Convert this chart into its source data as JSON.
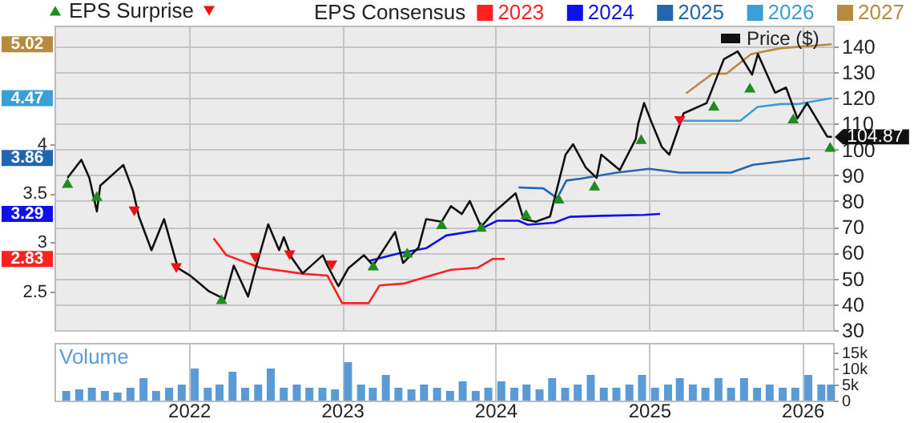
{
  "chart_data": [
    {
      "type": "line",
      "annotations": [
        "5.02",
        "4.47",
        "3.86",
        "3.29",
        "2.83"
      ],
      "legend_title": "EPS Consensus",
      "legend": "top",
      "grid": true,
      "tick_labels": "y",
      "xlim": [
        "2021-02-15",
        "2026-03-15"
      ],
      "xticks": [
        "2022",
        "2023",
        "2024",
        "2025",
        "2026"
      ],
      "ylim": [
        2.105,
        5.21
      ],
      "yticks": [
        2.5,
        3,
        3.5,
        4
      ],
      "y2lim": [
        30,
        148
      ],
      "y2ticks": [
        30,
        40,
        50,
        60,
        70,
        80,
        90,
        100,
        110,
        120,
        130,
        140
      ],
      "series": [
        {
          "name": "2023",
          "color": "#ff2020",
          "x": [
            "2022-03-01",
            "2022-03-31",
            "2022-06-20",
            "2022-09-29",
            "2022-11-27",
            "2023-01-01",
            "2023-03-05",
            "2023-03-31",
            "2023-05-29",
            "2023-07-31",
            "2023-09-17",
            "2023-11-19",
            "2023-12-25",
            "2024-01-23"
          ],
          "values": [
            3.04,
            2.87,
            2.74,
            2.68,
            2.66,
            2.38,
            2.38,
            2.56,
            2.58,
            2.66,
            2.72,
            2.74,
            2.83,
            2.83
          ]
        },
        {
          "name": "2024",
          "color": "#1010ee",
          "x": [
            "2023-03-05",
            "2023-05-18",
            "2023-07-20",
            "2023-09-06",
            "2023-11-19",
            "2024-01-05",
            "2024-02-25",
            "2024-03-18",
            "2024-05-20",
            "2024-06-26",
            "2024-09-08",
            "2024-12-20",
            "2025-01-27"
          ],
          "values": [
            2.81,
            2.89,
            2.94,
            3.07,
            3.12,
            3.22,
            3.22,
            3.18,
            3.2,
            3.26,
            3.27,
            3.28,
            3.29
          ]
        },
        {
          "name": "2025",
          "color": "#2266b0",
          "x": [
            "2024-02-25",
            "2024-04-24",
            "2024-05-27",
            "2024-06-18",
            "2024-07-22",
            "2024-10-15",
            "2025-01-01",
            "2025-03-15",
            "2025-07-15",
            "2025-09-05",
            "2026-01-19"
          ],
          "values": [
            3.56,
            3.55,
            3.45,
            3.63,
            3.65,
            3.71,
            3.75,
            3.71,
            3.71,
            3.79,
            3.86
          ]
        },
        {
          "name": "2026",
          "color": "#3a9fd4",
          "x": [
            "2025-03-22",
            "2025-08-06",
            "2025-09-16",
            "2025-11-11",
            "2025-12-21",
            "2026-01-30",
            "2026-03-12"
          ],
          "values": [
            4.24,
            4.24,
            4.38,
            4.41,
            4.41,
            4.44,
            4.47
          ]
        },
        {
          "name": "2027",
          "color": "#b88a3e",
          "x": [
            "2025-03-30",
            "2025-06-01",
            "2025-07-04",
            "2025-09-01",
            "2025-11-11",
            "2026-03-12"
          ],
          "values": [
            4.52,
            4.72,
            4.72,
            4.92,
            4.98,
            5.02
          ]
        },
        {
          "name": "Price ($)",
          "color": "#111111",
          "axis": "y2",
          "x": [
            "2021-03-18",
            "2021-04-20",
            "2021-05-09",
            "2021-05-27",
            "2021-06-04",
            "2021-07-29",
            "2021-08-21",
            "2021-09-04",
            "2021-10-04",
            "2021-11-03",
            "2021-12-06",
            "2022-01-05",
            "2022-02-18",
            "2022-03-27",
            "2022-04-18",
            "2022-05-22",
            "2022-06-09",
            "2022-07-09",
            "2022-08-04",
            "2022-08-15",
            "2022-09-03",
            "2022-09-29",
            "2022-11-16",
            "2022-11-27",
            "2022-12-23",
            "2023-01-16",
            "2023-02-22",
            "2023-03-16",
            "2023-05-07",
            "2023-05-26",
            "2023-07-02",
            "2023-07-20",
            "2023-08-26",
            "2023-09-17",
            "2023-10-13",
            "2023-11-01",
            "2023-11-28",
            "2023-12-24",
            "2024-02-18",
            "2024-03-08",
            "2024-04-06",
            "2024-05-10",
            "2024-06-16",
            "2024-07-04",
            "2024-08-03",
            "2024-08-29",
            "2024-09-09",
            "2024-10-23",
            "2024-11-30",
            "2024-12-06",
            "2024-12-20",
            "2025-01-08",
            "2025-01-31",
            "2025-02-18",
            "2025-03-24",
            "2025-05-18",
            "2025-06-28",
            "2025-07-31",
            "2025-09-03",
            "2025-09-17",
            "2025-10-28",
            "2025-11-23",
            "2025-12-20",
            "2026-01-12",
            "2026-03-01",
            "2026-03-12"
          ],
          "values": [
            89,
            96,
            89,
            76,
            86,
            94,
            84,
            74,
            61,
            73,
            54,
            51,
            45,
            42,
            55,
            43,
            54,
            71,
            61,
            66,
            58,
            52,
            59,
            55,
            47,
            54,
            59,
            55,
            68,
            56,
            62,
            73,
            72,
            78,
            75,
            80,
            70,
            75,
            83,
            73,
            72,
            74,
            98,
            102,
            93,
            89,
            98,
            92,
            104,
            110,
            118,
            110,
            101,
            98,
            114,
            118,
            135,
            138,
            129,
            137,
            122,
            124,
            112,
            118,
            105,
            104.87
          ],
          "value_labels": [
            null,
            null,
            null,
            null,
            null,
            null,
            null,
            null,
            null,
            null,
            null,
            null,
            null,
            null,
            null,
            null,
            null,
            null,
            null,
            null,
            null,
            null,
            null,
            null,
            null,
            null,
            null,
            null,
            null,
            null,
            null,
            null,
            null,
            null,
            null,
            null,
            null,
            null,
            null,
            null,
            null,
            null,
            null,
            null,
            null,
            null,
            null,
            null,
            null,
            null,
            null,
            null,
            null,
            null,
            null,
            null,
            null,
            null,
            null,
            null,
            null,
            null,
            null,
            null,
            null,
            "104.87"
          ]
        },
        {
          "type": "scatter",
          "name": "EPS Surprise",
          "marker": "triangle",
          "color": "#1e8c1e",
          "axis": "y2",
          "x": [
            "2021-03-18",
            "2021-05-27",
            "2022-03-20",
            "2023-03-16",
            "2023-06-05",
            "2023-08-26",
            "2023-11-28",
            "2024-03-14",
            "2024-05-31",
            "2024-08-24",
            "2024-12-13",
            "2025-06-04",
            "2025-08-29",
            "2025-12-10",
            "2026-03-08"
          ],
          "values": [
            87,
            82,
            42,
            55,
            60,
            71,
            70,
            75,
            81,
            86,
            104,
            117,
            124,
            112,
            101
          ]
        },
        {
          "type": "scatter",
          "marker": "triangle-down",
          "color": "#ee1111",
          "axis": "y2",
          "x": [
            "2021-08-24",
            "2021-12-02",
            "2022-06-08",
            "2022-08-29",
            "2022-12-07",
            "2025-03-15"
          ],
          "values": [
            76,
            54,
            58,
            59,
            55,
            111
          ]
        }
      ]
    },
    {
      "type": "bar",
      "annotations": [
        "Volume"
      ],
      "grid": "x",
      "xlim": [
        "2021-02-15",
        "2026-03-15"
      ],
      "xticks": [
        "2022",
        "2023",
        "2024",
        "2025",
        "2026"
      ],
      "y2lim": [
        0,
        18000
      ],
      "y2ticks": [
        0,
        {
          "value": 5000,
          "label": "5k"
        },
        {
          "value": 10000,
          "label": "10k"
        },
        {
          "value": 15000,
          "label": "15k"
        }
      ],
      "x": [
        "2021-03-15",
        "2021-04-15",
        "2021-05-15",
        "2021-06-15",
        "2021-07-15",
        "2021-08-15",
        "2021-09-15",
        "2021-10-15",
        "2021-11-15",
        "2021-12-15",
        "2022-01-15",
        "2022-02-15",
        "2022-03-15",
        "2022-04-15",
        "2022-05-15",
        "2022-06-15",
        "2022-07-15",
        "2022-08-15",
        "2022-09-15",
        "2022-10-15",
        "2022-11-15",
        "2022-12-15",
        "2023-01-15",
        "2023-02-15",
        "2023-03-15",
        "2023-04-15",
        "2023-05-15",
        "2023-06-15",
        "2023-07-15",
        "2023-08-15",
        "2023-09-15",
        "2023-10-15",
        "2023-11-15",
        "2023-12-15",
        "2024-01-15",
        "2024-02-15",
        "2024-03-15",
        "2024-04-15",
        "2024-05-15",
        "2024-06-15",
        "2024-07-15",
        "2024-08-15",
        "2024-09-15",
        "2024-10-15",
        "2024-11-15",
        "2024-12-15",
        "2025-01-15",
        "2025-02-15",
        "2025-03-15",
        "2025-04-15",
        "2025-05-15",
        "2025-06-15",
        "2025-07-15",
        "2025-08-15",
        "2025-09-15",
        "2025-10-15",
        "2025-11-15",
        "2025-12-15",
        "2026-01-15",
        "2026-02-15",
        "2026-03-10"
      ],
      "series": [
        {
          "color": "#5b9bd5",
          "axis": "y2",
          "values": [
            3000,
            3500,
            4000,
            3000,
            2500,
            4000,
            7000,
            3000,
            4000,
            5000,
            10000,
            4000,
            5000,
            9000,
            4000,
            5000,
            10000,
            4000,
            5000,
            4000,
            4000,
            3500,
            12000,
            5000,
            4000,
            8000,
            4000,
            3500,
            5000,
            4000,
            3000,
            6000,
            3000,
            4000,
            6000,
            4000,
            5000,
            3500,
            7000,
            4000,
            5000,
            8000,
            4000,
            4000,
            5000,
            8000,
            4000,
            5000,
            7000,
            5000,
            4000,
            7000,
            4000,
            7000,
            4000,
            5000,
            4000,
            4000,
            8000,
            5000,
            5000
          ]
        }
      ]
    }
  ]
}
